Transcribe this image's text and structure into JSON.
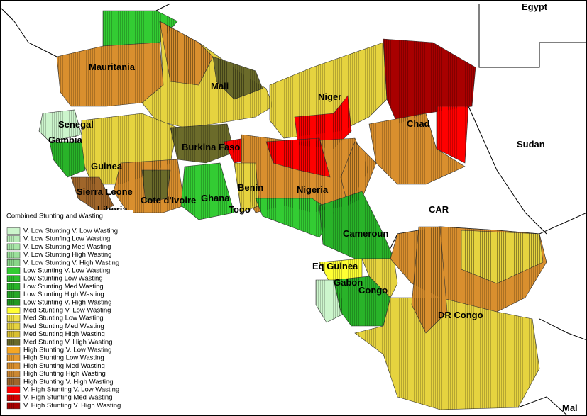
{
  "map_labels": [
    "Egypt",
    "Mauritania",
    "Mali",
    "Niger",
    "Chad",
    "Sudan",
    "Senegal",
    "Gambia",
    "Guinea",
    "Burkina Faso",
    "Benin",
    "Nigeria",
    "Sierra Leone",
    "Liberia",
    "Cote d'Ivoire",
    "Ghana",
    "Togo",
    "CAR",
    "Cameroun",
    "Eq Guinea",
    "Gabon",
    "Congo",
    "DR Congo",
    "Mal"
  ],
  "legend": {
    "title": "Combined Stunting and Wasting",
    "items": [
      {
        "label": "V. Low Stunting V. Low Wasting",
        "color": "#ccf5cc"
      },
      {
        "label": "V. Low Stunfing Low Wasting",
        "color": "#b8ecb8"
      },
      {
        "label": "V. Low Stunting Med Wasting",
        "color": "#a8e6a8"
      },
      {
        "label": "V. Low Stunting High Wasting",
        "color": "#9ae09a"
      },
      {
        "label": "V. Low Stunting V. High Wasting",
        "color": "#8ad68a"
      },
      {
        "label": "Low Stunting V. Low Wasting",
        "color": "#33cc33"
      },
      {
        "label": "Low Stunting Low Wasting",
        "color": "#2ec02e"
      },
      {
        "label": "Low Stunting Med Wasting",
        "color": "#29b329"
      },
      {
        "label": "Low Stunting High Wasting",
        "color": "#26a826"
      },
      {
        "label": "Low Stunting V. High Wasting",
        "color": "#229922"
      },
      {
        "label": "Med Stunting V. Low Wasting",
        "color": "#ffff33"
      },
      {
        "label": "Med Stunting Low Wasting",
        "color": "#f0e24a"
      },
      {
        "label": "Med Stunting Med Wasting",
        "color": "#e6d33f"
      },
      {
        "label": "Med Stunting High Wasting",
        "color": "#d9c030"
      },
      {
        "label": "Med Stunting V. High Wasting",
        "color": "#6b6b2a"
      },
      {
        "label": "High Stunting V. Low Wasting",
        "color": "#f5a623"
      },
      {
        "label": "High Stunting Low Wasting",
        "color": "#e69a2e"
      },
      {
        "label": "High Stunting Med Wasting",
        "color": "#d98f2e"
      },
      {
        "label": "High Stunting High Wasting",
        "color": "#cc8833"
      },
      {
        "label": "High Stunting V. High Wasting",
        "color": "#a0662a"
      },
      {
        "label": "V. High Stunting V. Low Wasting",
        "color": "#ff0000"
      },
      {
        "label": "V. High Stunting Med Wasting",
        "color": "#d40000"
      },
      {
        "label": "V. High Stunting V. High Wasting",
        "color": "#a80000"
      }
    ]
  }
}
